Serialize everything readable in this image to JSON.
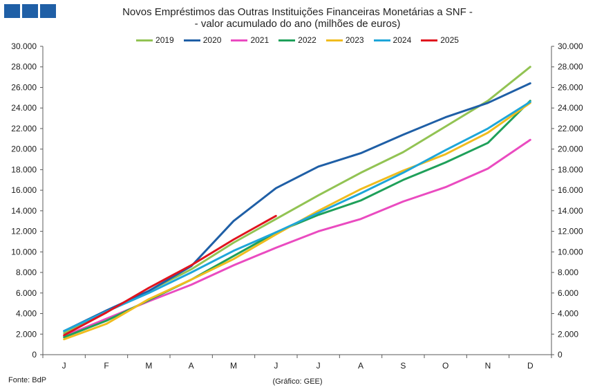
{
  "header": {
    "title_line1": "Novos Empréstimos das Outras Instituições Financeiras Monetárias a SNF -",
    "title_line2": "- valor acumulado do ano (milhões de euros)"
  },
  "footer": {
    "source": "Fonte: BdP",
    "credit": "(Gráfico: GEE)"
  },
  "chart_data": {
    "type": "line",
    "categories": [
      "J",
      "F",
      "M",
      "A",
      "M",
      "J",
      "J",
      "A",
      "S",
      "O",
      "N",
      "D"
    ],
    "y_tick_labels": [
      "0",
      "2.000",
      "4.000",
      "6.000",
      "8.000",
      "10.000",
      "12.000",
      "14.000",
      "16.000",
      "18.000",
      "20.000",
      "22.000",
      "24.000",
      "26.000",
      "28.000",
      "30.000"
    ],
    "ylim": [
      0,
      30000
    ],
    "y_step": 2000,
    "grid": false,
    "legend_position": "top",
    "secondary_axis_right": true,
    "series": [
      {
        "name": "2019",
        "color": "#92c353",
        "values": [
          2100,
          4200,
          6200,
          8300,
          10900,
          13200,
          15500,
          17700,
          19700,
          22200,
          24700,
          28000
        ]
      },
      {
        "name": "2020",
        "color": "#1f5fa6",
        "values": [
          2300,
          4300,
          6200,
          8600,
          13000,
          16200,
          18300,
          19600,
          21400,
          23100,
          24500,
          26400
        ]
      },
      {
        "name": "2021",
        "color": "#ea4bc0",
        "values": [
          1800,
          3500,
          5200,
          6800,
          8700,
          10400,
          12000,
          13200,
          14900,
          16300,
          18100,
          20900
        ]
      },
      {
        "name": "2022",
        "color": "#1fa05a",
        "values": [
          1700,
          3300,
          5300,
          7300,
          9600,
          11900,
          13600,
          15000,
          17000,
          18700,
          20600,
          24700
        ]
      },
      {
        "name": "2023",
        "color": "#f0bc1e",
        "values": [
          1500,
          3000,
          5400,
          7300,
          9300,
          11700,
          14000,
          16100,
          17900,
          19500,
          21600,
          24500
        ]
      },
      {
        "name": "2024",
        "color": "#1ea6d9",
        "values": [
          2300,
          4200,
          6000,
          8000,
          10100,
          11900,
          13800,
          15700,
          17700,
          19900,
          22000,
          24600
        ]
      },
      {
        "name": "2025",
        "color": "#e0141e",
        "values": [
          1900,
          4100,
          6500,
          8700,
          11200,
          13500,
          null,
          null,
          null,
          null,
          null,
          null
        ]
      }
    ]
  }
}
